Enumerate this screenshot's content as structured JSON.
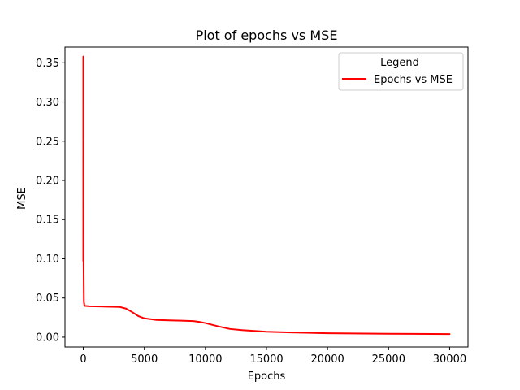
{
  "chart_data": {
    "type": "line",
    "title": "Plot of epochs vs MSE",
    "xlabel": "Epochs",
    "ylabel": "MSE",
    "xlim": [
      -1500,
      31500
    ],
    "ylim": [
      -0.0125,
      0.37
    ],
    "x_ticks": [
      0,
      5000,
      10000,
      15000,
      20000,
      25000,
      30000
    ],
    "x_tick_labels": [
      "0",
      "5000",
      "10000",
      "15000",
      "20000",
      "25000",
      "30000"
    ],
    "y_ticks": [
      0.0,
      0.05,
      0.1,
      0.15,
      0.2,
      0.25,
      0.3,
      0.35
    ],
    "y_tick_labels": [
      "0.00",
      "0.05",
      "0.10",
      "0.15",
      "0.20",
      "0.25",
      "0.30",
      "0.35"
    ],
    "grid": false,
    "legend": {
      "title": "Legend",
      "placement": "upper right"
    },
    "series": [
      {
        "name": "Epochs vs MSE",
        "color": "#ff0000",
        "x": [
          0,
          1,
          2,
          3,
          5,
          10,
          20,
          50,
          100,
          500,
          1000,
          2000,
          3000,
          3500,
          4000,
          4500,
          5000,
          6000,
          7000,
          8000,
          9000,
          9500,
          10000,
          11000,
          12000,
          13000,
          14000,
          15000,
          17000,
          20000,
          25000,
          30000
        ],
        "y": [
          0.358,
          0.097,
          0.355,
          0.12,
          0.25,
          0.18,
          0.1,
          0.045,
          0.04,
          0.0395,
          0.0393,
          0.039,
          0.0385,
          0.0365,
          0.032,
          0.027,
          0.024,
          0.022,
          0.0215,
          0.021,
          0.0205,
          0.0195,
          0.018,
          0.014,
          0.0105,
          0.009,
          0.008,
          0.007,
          0.006,
          0.005,
          0.0043,
          0.004
        ]
      }
    ]
  }
}
